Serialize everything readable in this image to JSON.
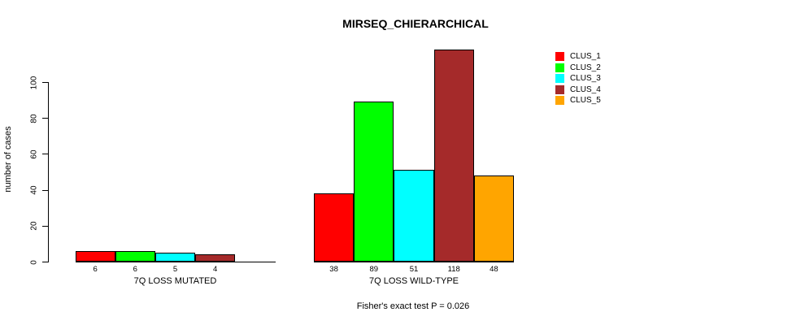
{
  "title": "MIRSEQ_CHIERARCHICAL",
  "chart_data": {
    "type": "bar",
    "title": "MIRSEQ_CHIERARCHICAL",
    "ylabel": "number of cases",
    "xlabel": "",
    "ylim": [
      0,
      100
    ],
    "yticks": [
      0,
      20,
      40,
      60,
      80,
      100
    ],
    "grid": false,
    "annotation": "Fisher's exact test P = 0.026",
    "series_names": [
      "CLUS_1",
      "CLUS_2",
      "CLUS_3",
      "CLUS_4",
      "CLUS_5"
    ],
    "bar_colors": [
      "#FF0000",
      "#00FF00",
      "#00FFFF",
      "#A52A2A",
      "#FFA500"
    ],
    "groups": [
      {
        "label": "7Q LOSS MUTATED",
        "values": [
          6,
          6,
          5,
          4,
          0
        ]
      },
      {
        "label": "7Q LOSS WILD-TYPE",
        "values": [
          38,
          89,
          51,
          118,
          48
        ]
      }
    ],
    "legend": {
      "position": "top-right",
      "entries": [
        {
          "label": "CLUS_1",
          "color": "#FF0000"
        },
        {
          "label": "CLUS_2",
          "color": "#00FF00"
        },
        {
          "label": "CLUS_3",
          "color": "#00FFFF"
        },
        {
          "label": "CLUS_4",
          "color": "#A52A2A"
        },
        {
          "label": "CLUS_5",
          "color": "#FFA500"
        }
      ]
    }
  }
}
